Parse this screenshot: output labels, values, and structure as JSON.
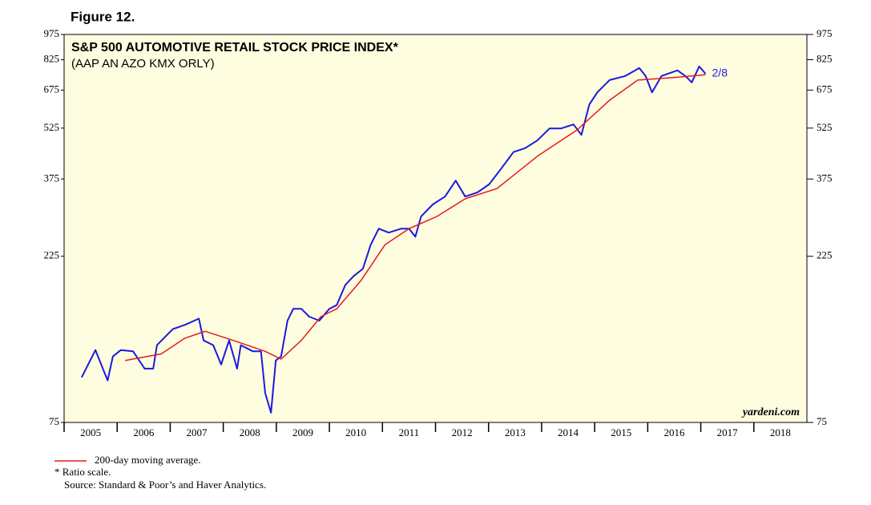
{
  "figure_label": "Figure 12.",
  "chart_data": {
    "type": "line",
    "title": "S&P 500 AUTOMOTIVE RETAIL STOCK PRICE INDEX*",
    "subtitle": "(AAP AN AZO KMX ORLY)",
    "log_scale": true,
    "xlim": [
      2005,
      2019
    ],
    "xticks": [
      2005,
      2006,
      2007,
      2008,
      2009,
      2010,
      2011,
      2012,
      2013,
      2014,
      2015,
      2016,
      2017,
      2018
    ],
    "ylim": [
      75,
      975
    ],
    "yticks": [
      75,
      225,
      375,
      525,
      675,
      825,
      975
    ],
    "series": [
      {
        "color": "#1a1adc",
        "x": [
          2005.33,
          2005.59,
          2005.82,
          2005.92,
          2006.07,
          2006.3,
          2006.52,
          2006.68,
          2006.75,
          2007.05,
          2007.28,
          2007.54,
          2007.63,
          2007.81,
          2007.96,
          2008.11,
          2008.26,
          2008.33,
          2008.56,
          2008.71,
          2008.79,
          2008.9,
          2008.99,
          2009.09,
          2009.21,
          2009.32,
          2009.47,
          2009.62,
          2009.81,
          2010.0,
          2010.14,
          2010.3,
          2010.45,
          2010.63,
          2010.78,
          2010.93,
          2011.12,
          2011.35,
          2011.5,
          2011.62,
          2011.73,
          2011.95,
          2012.18,
          2012.38,
          2012.56,
          2012.79,
          2013.01,
          2013.24,
          2013.47,
          2013.69,
          2013.92,
          2014.15,
          2014.37,
          2014.6,
          2014.75,
          2014.9,
          2015.05,
          2015.28,
          2015.58,
          2015.84,
          2015.96,
          2016.08,
          2016.26,
          2016.56,
          2016.71,
          2016.83,
          2016.97,
          2017.09
        ],
        "values": [
          101,
          121,
          99,
          116,
          121,
          120,
          107,
          107,
          125,
          139,
          143,
          149,
          129,
          125,
          110,
          129,
          107,
          125,
          120,
          120,
          91,
          80,
          113,
          116,
          147,
          159,
          159,
          151,
          147,
          159,
          163,
          186,
          197,
          207,
          243,
          270,
          263,
          270,
          270,
          256,
          293,
          317,
          334,
          371,
          334,
          343,
          362,
          402,
          448,
          460,
          484,
          524,
          524,
          538,
          502,
          614,
          665,
          721,
          741,
          781,
          741,
          665,
          741,
          769,
          741,
          710,
          789,
          752
        ]
      },
      {
        "name": "200-day moving average.",
        "color": "#e31a1c",
        "x": [
          2006.15,
          2006.83,
          2007.28,
          2007.66,
          2008.19,
          2008.79,
          2009.09,
          2009.47,
          2009.84,
          2010.14,
          2010.6,
          2011.05,
          2011.5,
          2012.03,
          2012.56,
          2013.16,
          2013.92,
          2014.67,
          2015.28,
          2015.81,
          2016.49,
          2017.09
        ],
        "values": [
          113,
          118,
          131,
          137,
          129,
          120,
          114,
          129,
          151,
          159,
          192,
          243,
          270,
          293,
          329,
          352,
          436,
          519,
          631,
          721,
          733,
          747
        ]
      }
    ],
    "annotations": [
      "2/8",
      "yardeni.com"
    ],
    "notes": [
      "* Ratio scale.",
      "Source: Standard & Poor’s and Haver Analytics."
    ]
  }
}
